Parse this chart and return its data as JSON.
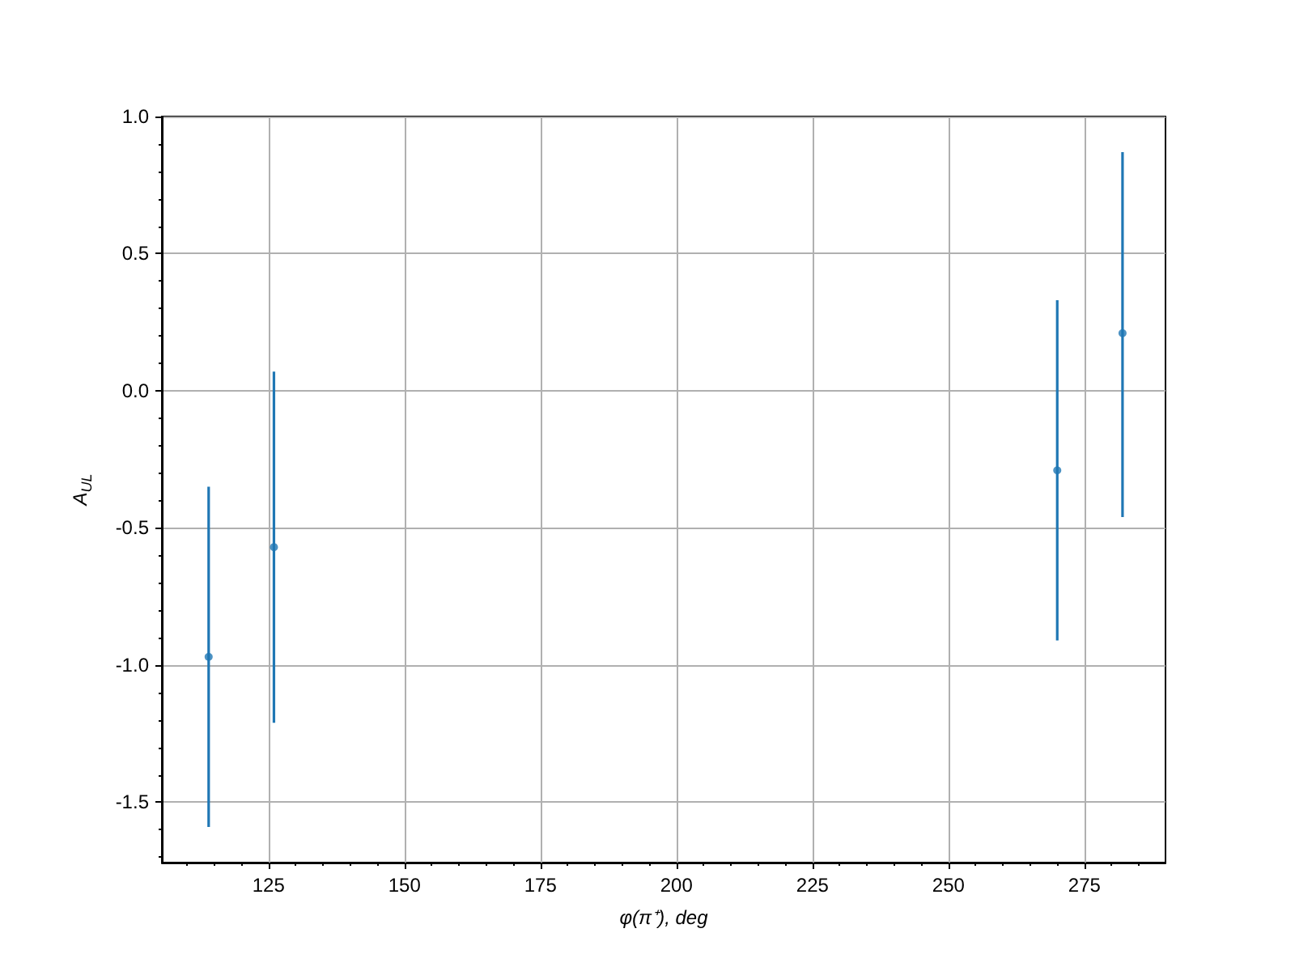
{
  "chart_data": {
    "type": "scatter",
    "xlabel": "φ(π⁺), deg",
    "ylabel": "A$_{UL}$",
    "x": [
      114,
      126,
      270,
      282
    ],
    "series": [
      {
        "color": "#1f77b4",
        "values": [
          -0.97,
          -0.57,
          -0.29,
          0.21
        ],
        "errors": [
          [
            -1.59,
            -0.35
          ],
          [
            -1.21,
            0.07
          ],
          [
            -0.91,
            0.33
          ],
          [
            -0.46,
            0.87
          ]
        ]
      }
    ],
    "xlim": [
      105.4,
      289.9
    ],
    "xticks": [
      125,
      150,
      175,
      200,
      225,
      250,
      275
    ],
    "ylim": [
      -1.72,
      1.0
    ],
    "yticks": [
      -1.5,
      {
        "value": -1,
        "label": "-1.0"
      },
      -0.5,
      {
        "value": 0,
        "label": "0.0"
      },
      0.5,
      {
        "value": 1,
        "label": "1.0"
      }
    ],
    "grid": true,
    "marker": "circle"
  }
}
